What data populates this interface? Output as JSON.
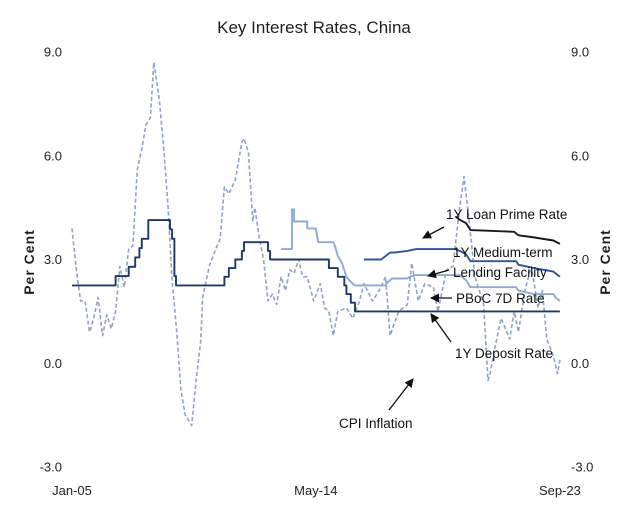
{
  "chart_data": {
    "type": "line",
    "title": "Key Interest Rates, China",
    "ylabel_left": "Per Cent",
    "ylabel_right": "Per Cent",
    "ylim": [
      -3.0,
      9.0
    ],
    "yticks": [
      "-3.0",
      "0.0",
      "3.0",
      "6.0",
      "9.0"
    ],
    "x_range": [
      2005.0,
      2023.75
    ],
    "xtick_labels": [
      {
        "label": "Jan-05",
        "x": 2005.0
      },
      {
        "label": "May-14",
        "x": 2014.33
      },
      {
        "label": "Sep-23",
        "x": 2023.67
      }
    ],
    "annotations": [
      {
        "text": "1Y Loan Prime Rate",
        "series": "1Y Loan Prime Rate"
      },
      {
        "text": "1Y Medium-term",
        "series": "1Y Medium-term Lending Facility"
      },
      {
        "text": "Lending Facility",
        "series": "1Y Medium-term Lending Facility"
      },
      {
        "text": "PBoC 7D Rate",
        "series": "PBoC 7D Rate"
      },
      {
        "text": "1Y Deposit Rate",
        "series": "1Y Deposit Rate"
      },
      {
        "text": "CPI Inflation",
        "series": "CPI Inflation"
      }
    ],
    "series": [
      {
        "name": "CPI Inflation",
        "color": "#8fa1c4",
        "style": "dashed",
        "points": [
          [
            2005.0,
            3.9
          ],
          [
            2005.17,
            2.7
          ],
          [
            2005.33,
            1.8
          ],
          [
            2005.5,
            1.8
          ],
          [
            2005.67,
            0.9
          ],
          [
            2005.83,
            1.3
          ],
          [
            2006.0,
            1.9
          ],
          [
            2006.17,
            0.8
          ],
          [
            2006.33,
            1.4
          ],
          [
            2006.5,
            1.0
          ],
          [
            2006.67,
            1.5
          ],
          [
            2006.83,
            2.8
          ],
          [
            2007.0,
            2.2
          ],
          [
            2007.17,
            3.3
          ],
          [
            2007.33,
            3.4
          ],
          [
            2007.5,
            5.6
          ],
          [
            2007.67,
            6.2
          ],
          [
            2007.83,
            6.9
          ],
          [
            2008.0,
            7.1
          ],
          [
            2008.13,
            8.7
          ],
          [
            2008.33,
            7.7
          ],
          [
            2008.5,
            6.3
          ],
          [
            2008.67,
            4.6
          ],
          [
            2008.83,
            2.4
          ],
          [
            2009.0,
            1.0
          ],
          [
            2009.17,
            -0.8
          ],
          [
            2009.33,
            -1.5
          ],
          [
            2009.5,
            -1.7
          ],
          [
            2009.58,
            -1.8
          ],
          [
            2009.75,
            -0.5
          ],
          [
            2009.92,
            0.6
          ],
          [
            2010.0,
            1.9
          ],
          [
            2010.25,
            2.8
          ],
          [
            2010.5,
            3.3
          ],
          [
            2010.67,
            3.6
          ],
          [
            2010.83,
            5.1
          ],
          [
            2011.0,
            4.9
          ],
          [
            2011.25,
            5.3
          ],
          [
            2011.5,
            6.4
          ],
          [
            2011.58,
            6.5
          ],
          [
            2011.75,
            6.1
          ],
          [
            2011.92,
            4.1
          ],
          [
            2012.0,
            4.5
          ],
          [
            2012.17,
            3.6
          ],
          [
            2012.33,
            3.0
          ],
          [
            2012.5,
            1.8
          ],
          [
            2012.67,
            2.0
          ],
          [
            2012.83,
            1.7
          ],
          [
            2013.0,
            2.5
          ],
          [
            2013.17,
            2.1
          ],
          [
            2013.33,
            2.7
          ],
          [
            2013.5,
            2.6
          ],
          [
            2013.67,
            3.0
          ],
          [
            2013.83,
            2.5
          ],
          [
            2014.0,
            2.5
          ],
          [
            2014.25,
            1.8
          ],
          [
            2014.5,
            2.3
          ],
          [
            2014.67,
            1.6
          ],
          [
            2014.83,
            1.5
          ],
          [
            2015.0,
            0.8
          ],
          [
            2015.17,
            1.5
          ],
          [
            2015.5,
            1.6
          ],
          [
            2015.75,
            1.3
          ],
          [
            2016.0,
            1.8
          ],
          [
            2016.17,
            2.3
          ],
          [
            2016.5,
            1.8
          ],
          [
            2016.75,
            2.1
          ],
          [
            2017.0,
            2.5
          ],
          [
            2017.17,
            0.8
          ],
          [
            2017.5,
            1.5
          ],
          [
            2017.83,
            1.7
          ],
          [
            2018.0,
            2.9
          ],
          [
            2018.25,
            1.8
          ],
          [
            2018.5,
            2.3
          ],
          [
            2018.83,
            2.2
          ],
          [
            2019.0,
            1.5
          ],
          [
            2019.33,
            2.7
          ],
          [
            2019.58,
            2.8
          ],
          [
            2019.83,
            4.5
          ],
          [
            2020.0,
            5.4
          ],
          [
            2020.17,
            4.3
          ],
          [
            2020.42,
            2.5
          ],
          [
            2020.75,
            1.7
          ],
          [
            2020.92,
            -0.5
          ],
          [
            2021.0,
            -0.3
          ],
          [
            2021.17,
            0.4
          ],
          [
            2021.42,
            1.3
          ],
          [
            2021.75,
            0.7
          ],
          [
            2021.92,
            1.5
          ],
          [
            2022.08,
            0.9
          ],
          [
            2022.33,
            2.1
          ],
          [
            2022.58,
            2.8
          ],
          [
            2022.83,
            1.6
          ],
          [
            2023.0,
            2.1
          ],
          [
            2023.17,
            0.7
          ],
          [
            2023.42,
            0.2
          ],
          [
            2023.58,
            -0.3
          ],
          [
            2023.67,
            0.1
          ]
        ]
      },
      {
        "name": "1Y Deposit Rate",
        "color": "#1f3864",
        "style": "solid",
        "points": [
          [
            2005.0,
            2.25
          ],
          [
            2006.67,
            2.25
          ],
          [
            2006.67,
            2.52
          ],
          [
            2007.17,
            2.52
          ],
          [
            2007.17,
            2.79
          ],
          [
            2007.42,
            2.79
          ],
          [
            2007.42,
            3.06
          ],
          [
            2007.58,
            3.06
          ],
          [
            2007.58,
            3.33
          ],
          [
            2007.67,
            3.33
          ],
          [
            2007.67,
            3.6
          ],
          [
            2007.92,
            3.6
          ],
          [
            2007.92,
            4.14
          ],
          [
            2008.75,
            4.14
          ],
          [
            2008.75,
            3.87
          ],
          [
            2008.83,
            3.87
          ],
          [
            2008.83,
            3.6
          ],
          [
            2008.92,
            3.6
          ],
          [
            2008.92,
            2.52
          ],
          [
            2008.98,
            2.52
          ],
          [
            2008.98,
            2.25
          ],
          [
            2010.83,
            2.25
          ],
          [
            2010.83,
            2.5
          ],
          [
            2011.0,
            2.5
          ],
          [
            2011.0,
            2.75
          ],
          [
            2011.25,
            2.75
          ],
          [
            2011.25,
            3.0
          ],
          [
            2011.5,
            3.0
          ],
          [
            2011.5,
            3.25
          ],
          [
            2011.58,
            3.25
          ],
          [
            2011.58,
            3.5
          ],
          [
            2012.5,
            3.5
          ],
          [
            2012.5,
            3.25
          ],
          [
            2012.58,
            3.25
          ],
          [
            2012.58,
            3.0
          ],
          [
            2014.83,
            3.0
          ],
          [
            2014.83,
            2.75
          ],
          [
            2015.17,
            2.75
          ],
          [
            2015.17,
            2.5
          ],
          [
            2015.42,
            2.5
          ],
          [
            2015.42,
            2.25
          ],
          [
            2015.5,
            2.25
          ],
          [
            2015.5,
            2.0
          ],
          [
            2015.67,
            2.0
          ],
          [
            2015.67,
            1.75
          ],
          [
            2015.83,
            1.75
          ],
          [
            2015.83,
            1.5
          ],
          [
            2023.67,
            1.5
          ]
        ]
      },
      {
        "name": "PBoC 7D Rate",
        "color": "#8eaad2",
        "style": "solid",
        "segments": [
          [
            [
              2013.0,
              3.3
            ],
            [
              2013.42,
              3.3
            ],
            [
              2013.42,
              4.45
            ],
            [
              2013.5,
              4.45
            ],
            [
              2013.5,
              4.1
            ],
            [
              2013.58,
              4.1
            ],
            [
              2013.58,
              4.1
            ],
            [
              2014.0,
              4.1
            ],
            [
              2014.0,
              3.9
            ],
            [
              2014.33,
              3.9
            ],
            [
              2014.42,
              3.5
            ],
            [
              2015.0,
              3.5
            ],
            [
              2015.08,
              3.35
            ],
            [
              2015.17,
              3.1
            ],
            [
              2015.33,
              2.9
            ],
            [
              2015.5,
              2.5
            ],
            [
              2015.67,
              2.35
            ],
            [
              2015.83,
              2.25
            ],
            [
              2017.0,
              2.25
            ],
            [
              2017.08,
              2.35
            ],
            [
              2017.25,
              2.45
            ],
            [
              2017.83,
              2.45
            ],
            [
              2017.92,
              2.5
            ],
            [
              2018.17,
              2.55
            ],
            [
              2019.83,
              2.55
            ],
            [
              2019.92,
              2.5
            ],
            [
              2020.08,
              2.4
            ],
            [
              2020.25,
              2.2
            ],
            [
              2022.0,
              2.2
            ],
            [
              2022.08,
              2.1
            ],
            [
              2022.67,
              2.0
            ],
            [
              2023.42,
              2.0
            ],
            [
              2023.5,
              1.9
            ],
            [
              2023.67,
              1.8
            ]
          ]
        ]
      },
      {
        "name": "1Y Medium-term Lending Facility",
        "color": "#2e5597",
        "style": "solid",
        "segments": [
          [
            [
              2016.17,
              3.0
            ],
            [
              2016.42,
              3.0
            ],
            [
              2016.5,
              3.0
            ],
            [
              2016.67,
              3.0
            ],
            [
              2016.83,
              3.0
            ],
            [
              2017.0,
              3.1
            ],
            [
              2017.17,
              3.2
            ],
            [
              2017.33,
              3.2
            ],
            [
              2017.83,
              3.25
            ],
            [
              2018.17,
              3.3
            ],
            [
              2019.67,
              3.3
            ],
            [
              2019.83,
              3.25
            ],
            [
              2020.08,
              3.15
            ],
            [
              2020.25,
              2.95
            ],
            [
              2022.0,
              2.95
            ],
            [
              2022.08,
              2.85
            ],
            [
              2022.67,
              2.75
            ],
            [
              2023.42,
              2.65
            ],
            [
              2023.67,
              2.5
            ]
          ]
        ]
      },
      {
        "name": "1Y Loan Prime Rate",
        "color": "#1a1a1a",
        "style": "solid",
        "segments": [
          [
            [
              2019.67,
              4.25
            ],
            [
              2019.75,
              4.2
            ],
            [
              2019.83,
              4.15
            ],
            [
              2020.08,
              4.05
            ],
            [
              2020.25,
              3.85
            ],
            [
              2021.92,
              3.8
            ],
            [
              2022.08,
              3.7
            ],
            [
              2022.58,
              3.65
            ],
            [
              2023.42,
              3.55
            ],
            [
              2023.67,
              3.45
            ]
          ]
        ]
      }
    ]
  }
}
